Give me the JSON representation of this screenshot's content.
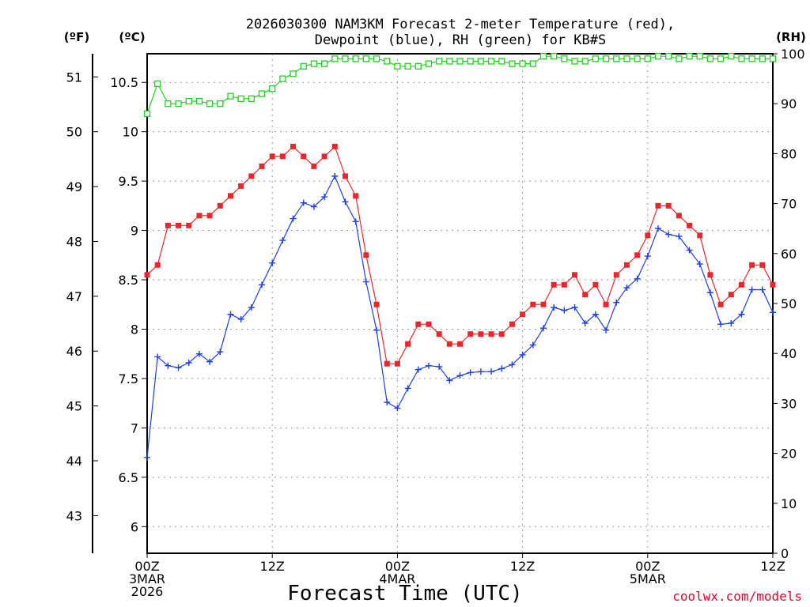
{
  "chart_data": {
    "type": "line",
    "title_line1": "2026030300 NAM3KM Forecast 2-meter Temperature (red),",
    "title_line2": "Dewpoint (blue), RH (green) for KB#S",
    "left_outer_unit": "(ºF)",
    "left_inner_unit": "(ºC)",
    "right_unit": "(RH)",
    "xlabel": "Forecast Time (UTC)",
    "credit": "coolwx.com/models",
    "x_ticks": [
      {
        "hour": 0,
        "lines": [
          "00Z",
          "3MAR",
          "2026"
        ]
      },
      {
        "hour": 12,
        "lines": [
          "12Z"
        ]
      },
      {
        "hour": 24,
        "lines": [
          "00Z",
          "4MAR"
        ]
      },
      {
        "hour": 36,
        "lines": [
          "12Z"
        ]
      },
      {
        "hour": 48,
        "lines": [
          "00Z",
          "5MAR"
        ]
      },
      {
        "hour": 60,
        "lines": [
          "12Z"
        ]
      }
    ],
    "xlim_hours": [
      0,
      60
    ],
    "celsius_ticks": [
      "6",
      "6.5",
      "7",
      "7.5",
      "8",
      "8.5",
      "9",
      "9.5",
      "10",
      "10.5"
    ],
    "fahrenheit_ticks": [
      "43",
      "44",
      "45",
      "46",
      "47",
      "48",
      "49",
      "50",
      "51"
    ],
    "rh_ticks": [
      "0",
      "10",
      "20",
      "30",
      "40",
      "50",
      "60",
      "70",
      "80",
      "90",
      "100"
    ],
    "ylim_celsius": [
      5.73,
      10.79
    ],
    "ylim_rh": [
      0,
      100
    ],
    "grid": true,
    "series": [
      {
        "name": "Temperature",
        "color": "#e8262b",
        "marker": "filled-square",
        "axis": "celsius",
        "values": [
          8.55,
          8.65,
          9.05,
          9.05,
          9.05,
          9.15,
          9.15,
          9.25,
          9.35,
          9.45,
          9.55,
          9.65,
          9.75,
          9.75,
          9.85,
          9.75,
          9.65,
          9.75,
          9.85,
          9.55,
          9.35,
          8.75,
          8.25,
          7.65,
          7.65,
          7.85,
          8.05,
          8.05,
          7.95,
          7.85,
          7.85,
          7.95,
          7.95,
          7.95,
          7.95,
          8.05,
          8.15,
          8.25,
          8.25,
          8.45,
          8.45,
          8.55,
          8.35,
          8.45,
          8.25,
          8.55,
          8.65,
          8.75,
          8.95,
          9.25,
          9.25,
          9.15,
          9.05,
          8.95,
          8.55,
          8.25,
          8.35,
          8.45,
          8.65,
          8.65,
          8.45
        ]
      },
      {
        "name": "Dewpoint",
        "color": "#1f3fe0",
        "marker": "plus",
        "axis": "celsius",
        "values": [
          6.7,
          7.72,
          7.63,
          7.61,
          7.66,
          7.75,
          7.67,
          7.77,
          8.15,
          8.1,
          8.22,
          8.45,
          8.67,
          8.9,
          9.12,
          9.28,
          9.24,
          9.34,
          9.55,
          9.29,
          9.09,
          8.48,
          7.99,
          7.26,
          7.2,
          7.4,
          7.59,
          7.63,
          7.62,
          7.48,
          7.53,
          7.56,
          7.57,
          7.57,
          7.6,
          7.64,
          7.74,
          7.84,
          8.01,
          8.22,
          8.19,
          8.22,
          8.06,
          8.15,
          7.99,
          8.27,
          8.42,
          8.51,
          8.74,
          9.02,
          8.96,
          8.94,
          8.8,
          8.66,
          8.37,
          8.05,
          8.06,
          8.15,
          8.4,
          8.4,
          8.17
        ]
      },
      {
        "name": "RH",
        "color": "#22d022",
        "marker": "open-square",
        "axis": "rh",
        "values": [
          88,
          94,
          90,
          90,
          90.5,
          90.5,
          90,
          90,
          91.5,
          91,
          91,
          92,
          93,
          95,
          96,
          97.5,
          98,
          98,
          99,
          99,
          99,
          99,
          99,
          98.5,
          97.5,
          97.5,
          97.5,
          98,
          98.5,
          98.5,
          98.5,
          98.5,
          98.5,
          98.5,
          98.5,
          98,
          98,
          98,
          99.5,
          99.5,
          99,
          98.5,
          98.5,
          99,
          99,
          99,
          99,
          99,
          99,
          99.5,
          99.5,
          99,
          99.5,
          99.5,
          99,
          99,
          99.5,
          99,
          99,
          99,
          99
        ]
      }
    ]
  }
}
